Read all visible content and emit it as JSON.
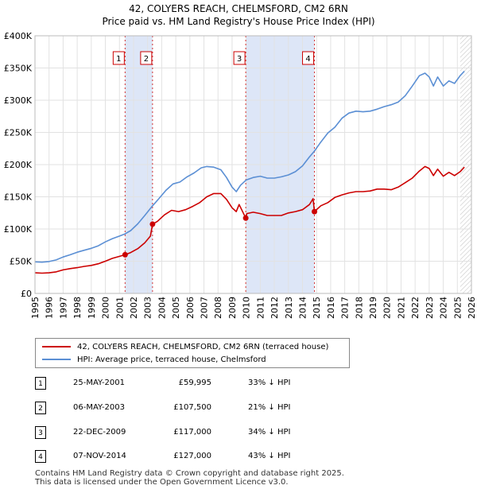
{
  "title": {
    "line1": "42, COLYERS REACH, CHELMSFORD, CM2 6RN",
    "line2": "Price paid vs. HM Land Registry's House Price Index (HPI)"
  },
  "chart_data": {
    "type": "line",
    "title": "42, COLYERS REACH, CHELMSFORD, CM2 6RN — Price paid vs. HM Land Registry's House Price Index (HPI)",
    "xlabel": "",
    "ylabel": "",
    "xlim": [
      1995,
      2026
    ],
    "ylim": [
      0,
      400000
    ],
    "x_ticks": [
      "1995",
      "1996",
      "1997",
      "1998",
      "1999",
      "2000",
      "2001",
      "2002",
      "2003",
      "2004",
      "2005",
      "2006",
      "2007",
      "2008",
      "2009",
      "2010",
      "2011",
      "2012",
      "2013",
      "2014",
      "2015",
      "2016",
      "2017",
      "2018",
      "2019",
      "2020",
      "2021",
      "2022",
      "2023",
      "2024",
      "2025",
      "2026"
    ],
    "y_ticks": [
      {
        "value": 0,
        "label": "£0"
      },
      {
        "value": 50000,
        "label": "£50K"
      },
      {
        "value": 100000,
        "label": "£100K"
      },
      {
        "value": 150000,
        "label": "£150K"
      },
      {
        "value": 200000,
        "label": "£200K"
      },
      {
        "value": 250000,
        "label": "£250K"
      },
      {
        "value": 300000,
        "label": "£300K"
      },
      {
        "value": 350000,
        "label": "£350K"
      },
      {
        "value": 400000,
        "label": "£400K"
      }
    ],
    "grid": true,
    "legend_position": "below",
    "series": [
      {
        "name": "42, COLYERS REACH, CHELMSFORD, CM2 6RN (terraced house)",
        "color": "#cc0000",
        "x": [
          1995.0,
          1995.5,
          1996.0,
          1996.5,
          1997.0,
          1997.5,
          1998.0,
          1998.5,
          1999.0,
          1999.5,
          2000.0,
          2000.5,
          2001.0,
          2001.4,
          2001.8,
          2002.3,
          2002.8,
          2003.2,
          2003.35,
          2003.7,
          2004.2,
          2004.7,
          2005.2,
          2005.7,
          2006.2,
          2006.7,
          2007.2,
          2007.7,
          2008.2,
          2008.6,
          2009.0,
          2009.3,
          2009.5,
          2009.97,
          2010.05,
          2010.5,
          2011.0,
          2011.5,
          2012.0,
          2012.5,
          2013.0,
          2013.5,
          2014.0,
          2014.5,
          2014.75,
          2014.85,
          2015.3,
          2015.8,
          2016.3,
          2016.8,
          2017.3,
          2017.8,
          2018.3,
          2018.8,
          2019.3,
          2019.8,
          2020.3,
          2020.8,
          2021.3,
          2021.8,
          2022.3,
          2022.7,
          2023.0,
          2023.3,
          2023.6,
          2024.0,
          2024.4,
          2024.8,
          2025.2,
          2025.5
        ],
        "values": [
          32000,
          31500,
          32000,
          33500,
          36500,
          38500,
          40000,
          42000,
          43500,
          46000,
          50000,
          54500,
          57500,
          60000,
          63500,
          69500,
          78500,
          89000,
          107500,
          112000,
          122000,
          129000,
          127000,
          130000,
          135000,
          141000,
          150000,
          155000,
          155000,
          146000,
          133000,
          127000,
          138000,
          117000,
          124000,
          126000,
          124000,
          121000,
          121000,
          121000,
          125000,
          127000,
          130000,
          138000,
          147000,
          127000,
          136000,
          141000,
          149000,
          153000,
          156000,
          158000,
          158000,
          159000,
          162000,
          162000,
          161000,
          165000,
          172000,
          179000,
          190000,
          197000,
          194000,
          183000,
          193000,
          182000,
          188000,
          183000,
          189000,
          196000
        ]
      },
      {
        "name": "HPI: Average price, terraced house, Chelmsford",
        "color": "#5b8fd4",
        "x": [
          1995.0,
          1995.5,
          1996.0,
          1996.5,
          1997.0,
          1997.5,
          1998.0,
          1998.5,
          1999.0,
          1999.5,
          2000.0,
          2000.5,
          2001.0,
          2001.4,
          2001.8,
          2002.3,
          2002.8,
          2003.35,
          2003.8,
          2004.3,
          2004.8,
          2005.3,
          2005.8,
          2006.3,
          2006.8,
          2007.2,
          2007.7,
          2008.2,
          2008.6,
          2009.0,
          2009.3,
          2009.6,
          2010.0,
          2010.5,
          2011.0,
          2011.5,
          2012.0,
          2012.5,
          2013.0,
          2013.5,
          2014.0,
          2014.5,
          2014.85,
          2015.3,
          2015.8,
          2016.3,
          2016.8,
          2017.3,
          2017.8,
          2018.3,
          2018.8,
          2019.3,
          2019.8,
          2020.3,
          2020.8,
          2021.3,
          2021.8,
          2022.3,
          2022.7,
          2023.0,
          2023.3,
          2023.6,
          2024.0,
          2024.4,
          2024.8,
          2025.2,
          2025.5
        ],
        "values": [
          49000,
          48500,
          49500,
          52000,
          56500,
          60000,
          64000,
          67000,
          70000,
          74000,
          80000,
          85000,
          89000,
          92500,
          97500,
          108000,
          121000,
          136000,
          147000,
          160000,
          170000,
          173000,
          181000,
          187000,
          195000,
          197000,
          196000,
          192000,
          180000,
          165000,
          158000,
          168000,
          176000,
          180000,
          182000,
          179000,
          179000,
          181000,
          184000,
          189000,
          198000,
          212000,
          221000,
          235000,
          249000,
          258000,
          272000,
          280000,
          283000,
          282000,
          283000,
          286000,
          290000,
          293000,
          297000,
          307000,
          322000,
          338000,
          342000,
          336000,
          322000,
          336000,
          322000,
          330000,
          326000,
          338000,
          345000
        ]
      }
    ],
    "annotations": [
      {
        "label": "1",
        "x": 2001.4,
        "color": "#cc0000"
      },
      {
        "label": "2",
        "x": 2003.35,
        "color": "#cc0000"
      },
      {
        "label": "3",
        "x": 2009.97,
        "color": "#cc0000"
      },
      {
        "label": "4",
        "x": 2014.85,
        "color": "#cc0000"
      }
    ],
    "shaded_ranges": [
      {
        "from": 2001.4,
        "to": 2003.35,
        "color": "#dde6f7"
      },
      {
        "from": 2009.97,
        "to": 2014.85,
        "color": "#dde6f7"
      }
    ],
    "sale_points": [
      {
        "x": 2001.4,
        "y": 59995
      },
      {
        "x": 2003.35,
        "y": 107500
      },
      {
        "x": 2009.97,
        "y": 117000
      },
      {
        "x": 2014.85,
        "y": 127000
      }
    ],
    "forecast_from": 2025.2
  },
  "legend": {
    "property_label": "42, COLYERS REACH, CHELMSFORD, CM2 6RN (terraced house)",
    "hpi_label": "HPI: Average price, terraced house, Chelmsford",
    "property_color": "#cc0000",
    "hpi_color": "#5b8fd4"
  },
  "transactions": [
    {
      "num": "1",
      "date": "25-MAY-2001",
      "price": "£59,995",
      "hpi": "33% ↓ HPI"
    },
    {
      "num": "2",
      "date": "06-MAY-2003",
      "price": "£107,500",
      "hpi": "21% ↓ HPI"
    },
    {
      "num": "3",
      "date": "22-DEC-2009",
      "price": "£117,000",
      "hpi": "34% ↓ HPI"
    },
    {
      "num": "4",
      "date": "07-NOV-2014",
      "price": "£127,000",
      "hpi": "43% ↓ HPI"
    }
  ],
  "footer": {
    "line1": "Contains HM Land Registry data © Crown copyright and database right 2025.",
    "line2": "This data is licensed under the Open Government Licence v3.0."
  }
}
